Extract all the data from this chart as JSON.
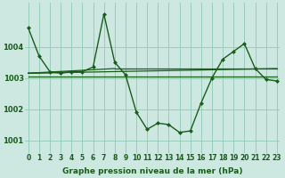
{
  "xlabel": "Graphe pression niveau de la mer (hPa)",
  "bg_color": "#cce8e0",
  "grid_color": "#99ccbb",
  "line_color": "#1a5c1a",
  "marker": "D",
  "main": [
    1004.6,
    1003.7,
    1003.2,
    1003.15,
    1003.2,
    1003.2,
    1003.35,
    1005.05,
    1003.5,
    1003.1,
    1001.9,
    1001.35,
    1001.55,
    1001.5,
    1001.25,
    1001.3,
    1002.2,
    1003.0,
    1003.6,
    1003.85,
    1004.1,
    1003.3,
    1002.95,
    1002.9
  ],
  "ref_line1_x": [
    0,
    23
  ],
  "ref_line1_y": [
    1003.15,
    1003.3
  ],
  "ref_line2_x": [
    0,
    5,
    23
  ],
  "ref_line2_y": [
    1003.15,
    1003.2,
    1003.15
  ],
  "ref_line3_x": [
    0,
    23
  ],
  "ref_line3_y": [
    1003.05,
    1003.05
  ],
  "ref_line4_x": [
    5,
    23
  ],
  "ref_line4_y": [
    1003.2,
    1003.3
  ],
  "ylim": [
    1000.6,
    1005.4
  ],
  "yticks": [
    1001,
    1002,
    1003,
    1004
  ],
  "xticks": [
    0,
    1,
    2,
    3,
    4,
    5,
    6,
    7,
    8,
    9,
    10,
    11,
    12,
    13,
    14,
    15,
    16,
    17,
    18,
    19,
    20,
    21,
    22,
    23
  ],
  "xlim": [
    -0.3,
    23.3
  ],
  "tick_fontsize": 5.5,
  "xlabel_fontsize": 6.5
}
